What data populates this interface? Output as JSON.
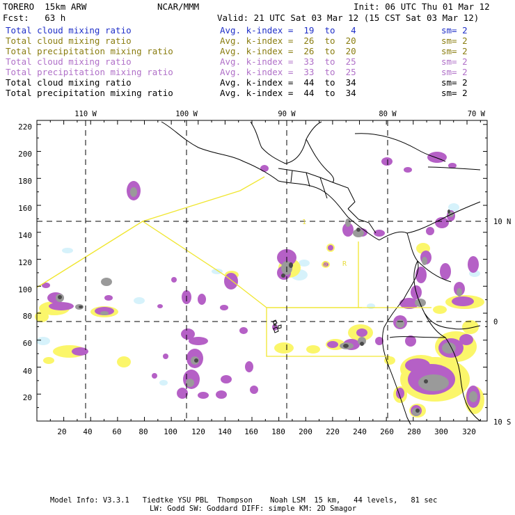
{
  "header": {
    "model": "TORERO  15km ARW",
    "org": "NCAR/MMM",
    "init": "Init: 06 UTC Thu 01 Mar 12",
    "fcst": "Fcst:   63 h",
    "valid": "Valid: 21 UTC Sat 03 Mar 12 (15 CST Sat 03 Mar 12)"
  },
  "legend": [
    {
      "field": "Total cloud mixing ratio",
      "kindex": "Avg. k-index =  19  to   4",
      "sm": "sm= 2",
      "color": "#1f2fc8"
    },
    {
      "field": "Total cloud mixing ratio",
      "kindex": "Avg. k-index =  26  to  20",
      "sm": "sm= 2",
      "color": "#8a7d10"
    },
    {
      "field": "Total precipitation mixing ratio",
      "kindex": "Avg. k-index =  26  to  20",
      "sm": "sm= 2",
      "color": "#8a7d10"
    },
    {
      "field": "Total cloud mixing ratio",
      "kindex": "Avg. k-index =  33  to  25",
      "sm": "sm= 2",
      "color": "#b070c8"
    },
    {
      "field": "Total precipitation mixing ratio",
      "kindex": "Avg. k-index =  33  to  25",
      "sm": "sm= 2",
      "color": "#b070c8"
    },
    {
      "field": "Total cloud mixing ratio",
      "kindex": "Avg. k-index =  44  to  34",
      "sm": "sm= 2",
      "color": "#000000"
    },
    {
      "field": "Total precipitation mixing ratio",
      "kindex": "Avg. k-index =  44  to  34",
      "sm": "sm= 2",
      "color": "#000000"
    }
  ],
  "map": {
    "lon_labels": [
      "110 W",
      "100 W",
      "90 W",
      "80 W",
      "70 W"
    ],
    "lat_labels": [
      "10 N",
      "0",
      "10 S"
    ],
    "x_ticks": [
      "20",
      "40",
      "60",
      "80",
      "100",
      "120",
      "140",
      "160",
      "180",
      "200",
      "220",
      "240",
      "260",
      "280",
      "300",
      "320"
    ],
    "y_ticks": [
      "20",
      "40",
      "60",
      "80",
      "100",
      "120",
      "140",
      "160",
      "180",
      "200",
      "220"
    ],
    "domain_labels": [
      "1",
      "G",
      "R"
    ],
    "colors": {
      "light_cyan": "#d6f2fb",
      "yellow": "#fbf66a",
      "violet": "#b560c6",
      "gray": "#9a9a9a",
      "dark": "#4a4a4a",
      "domain_line": "#f0e630",
      "coast": "#000000"
    }
  },
  "footer": {
    "line1": "Model Info: V3.3.1   Tiedtke YSU PBL  Thompson    Noah LSM  15 km,   44 levels,   81 sec",
    "line2": "LW: Godd SW: Goddard DIFF: simple KM: 2D Smagor"
  }
}
